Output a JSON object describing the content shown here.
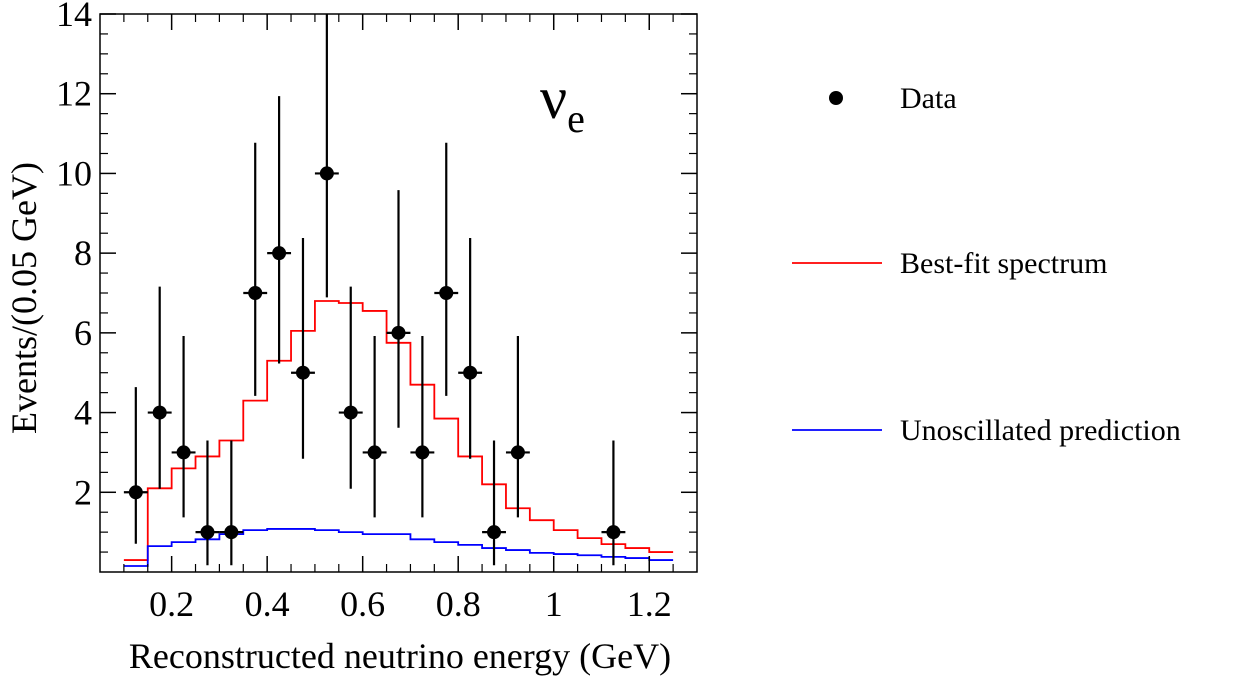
{
  "chart_data": {
    "type": "line",
    "title": "",
    "xlabel": "Reconstructed neutrino energy (GeV)",
    "ylabel": "Events/(0.05 GeV)",
    "xlim": [
      0.05,
      1.3
    ],
    "ylim": [
      0,
      14
    ],
    "x_ticks": [
      0.2,
      0.4,
      0.6,
      0.8,
      1,
      1.2
    ],
    "x_tick_labels": [
      "0.2",
      "0.4",
      "0.6",
      "0.8",
      "1",
      "1.2"
    ],
    "y_ticks": [
      2,
      4,
      6,
      8,
      10,
      12,
      14
    ],
    "y_tick_labels": [
      "2",
      "4",
      "6",
      "8",
      "10",
      "12",
      "14"
    ],
    "grid": false,
    "legend_placement": "right",
    "annotation": {
      "symbol": "ν",
      "subscript": "e"
    },
    "series": [
      {
        "name": "Data",
        "kind": "points",
        "color": "#000000",
        "x": [
          0.125,
          0.175,
          0.225,
          0.275,
          0.325,
          0.375,
          0.425,
          0.475,
          0.525,
          0.575,
          0.625,
          0.675,
          0.725,
          0.775,
          0.825,
          0.875,
          0.925,
          1.125
        ],
        "y": [
          2,
          4,
          3,
          1,
          1,
          7,
          8,
          5,
          10,
          4,
          3,
          6,
          3,
          7,
          5,
          1,
          3,
          1
        ],
        "x_err": 0.025,
        "y_err_low": [
          1.29,
          1.91,
          1.63,
          0.83,
          0.83,
          2.58,
          2.77,
          2.16,
          3.11,
          1.91,
          1.63,
          2.38,
          1.63,
          2.58,
          2.16,
          0.83,
          1.63,
          0.83
        ],
        "y_err_high": [
          2.64,
          3.16,
          2.92,
          2.3,
          2.3,
          3.77,
          3.94,
          3.38,
          4.26,
          3.16,
          2.92,
          3.58,
          2.92,
          3.77,
          3.38,
          2.3,
          2.92,
          2.3
        ]
      },
      {
        "name": "Best-fit spectrum",
        "kind": "step",
        "color": "#ff0000",
        "bin_edges": [
          0.1,
          0.15,
          0.2,
          0.25,
          0.3,
          0.35,
          0.4,
          0.45,
          0.5,
          0.55,
          0.6,
          0.65,
          0.7,
          0.75,
          0.8,
          0.85,
          0.9,
          0.95,
          1.0,
          1.05,
          1.1,
          1.15,
          1.2,
          1.25
        ],
        "values": [
          0.3,
          2.1,
          2.6,
          2.9,
          3.3,
          4.3,
          5.3,
          6.05,
          6.8,
          6.75,
          6.55,
          5.75,
          4.7,
          3.85,
          2.9,
          2.2,
          1.6,
          1.3,
          1.05,
          0.85,
          0.7,
          0.6,
          0.5
        ]
      },
      {
        "name": "Unoscillated prediction",
        "kind": "step",
        "color": "#0000ff",
        "bin_edges": [
          0.1,
          0.15,
          0.2,
          0.25,
          0.3,
          0.35,
          0.4,
          0.45,
          0.5,
          0.55,
          0.6,
          0.65,
          0.7,
          0.75,
          0.8,
          0.85,
          0.9,
          0.95,
          1.0,
          1.05,
          1.1,
          1.15,
          1.2,
          1.25
        ],
        "values": [
          0.15,
          0.65,
          0.75,
          0.82,
          0.95,
          1.05,
          1.08,
          1.08,
          1.05,
          1.0,
          0.95,
          0.95,
          0.82,
          0.75,
          0.68,
          0.6,
          0.55,
          0.48,
          0.45,
          0.42,
          0.38,
          0.35,
          0.3
        ]
      }
    ]
  }
}
